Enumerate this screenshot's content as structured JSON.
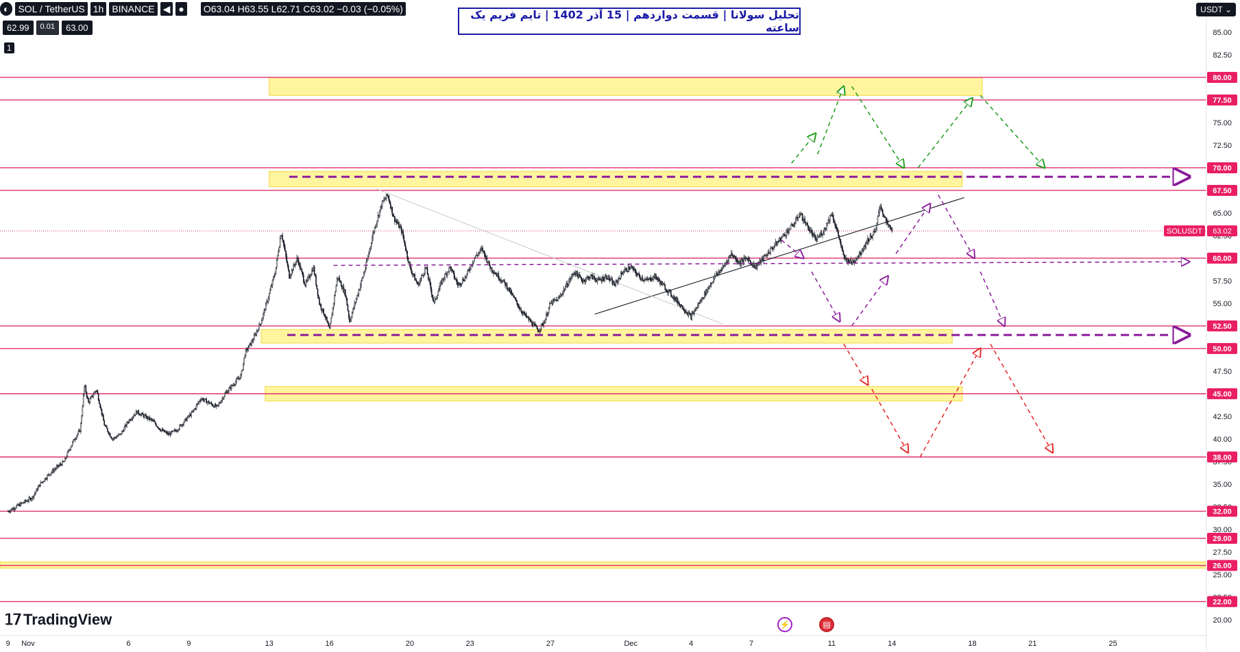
{
  "header": {
    "symbol": "SOL / TetherUS",
    "interval": "1h",
    "exchange": "BINANCE",
    "ohlc": "O63.04 H63.55 L62.71 C63.02 −0.03 (−0.05%)",
    "bid": "62.99",
    "spread": "0.01",
    "ask": "63.00",
    "collapse_label": "1"
  },
  "title": "تحلیل سولانا | قسمت دوازدهم | 15 آذر 1402 | تایم فریم یک ساعته",
  "currency_button": "USDT",
  "logo_text": "TradingView",
  "colors": {
    "candle": "#131722",
    "level_line": "#e0306a",
    "zone_fill": "#fff176",
    "price_label_bg": "#e91e63",
    "title_border": "#1a1aa8",
    "green_path": "#1a9a1a",
    "purple_path": "#8a1a9a",
    "red_path": "#e52222"
  },
  "chart_data": {
    "type": "candlestick",
    "symbol": "SOLUSDT",
    "last_price": 63.02,
    "last_price_label": "63.02",
    "ylim": [
      19,
      87.5
    ],
    "y_ticks": [
      "85.00",
      "82.50",
      "77.50",
      "75.00",
      "72.50",
      "67.50",
      "65.00",
      "62.50",
      "57.50",
      "55.00",
      "52.50",
      "47.50",
      "45.00",
      "42.50",
      "40.00",
      "37.50",
      "35.00",
      "32.50",
      "30.00",
      "27.50",
      "25.00",
      "22.50",
      "20.00"
    ],
    "x_ticks": [
      {
        "day": 0,
        "label": "9"
      },
      {
        "day": 1,
        "label": "Nov"
      },
      {
        "day": 6,
        "label": "6"
      },
      {
        "day": 9,
        "label": "9"
      },
      {
        "day": 13,
        "label": "13"
      },
      {
        "day": 16,
        "label": "16"
      },
      {
        "day": 20,
        "label": "20"
      },
      {
        "day": 23,
        "label": "23"
      },
      {
        "day": 27,
        "label": "27"
      },
      {
        "day": 31,
        "label": "Dec"
      },
      {
        "day": 34,
        "label": "4"
      },
      {
        "day": 37,
        "label": "7"
      },
      {
        "day": 41,
        "label": "11"
      },
      {
        "day": 44,
        "label": "14"
      },
      {
        "day": 48,
        "label": "18"
      },
      {
        "day": 51,
        "label": "21"
      },
      {
        "day": 55,
        "label": "25"
      }
    ],
    "levels": [
      {
        "price": 80.0,
        "label": "80.00"
      },
      {
        "price": 77.5,
        "label": "77.50"
      },
      {
        "price": 70.0,
        "label": "70.00"
      },
      {
        "price": 67.5,
        "label": "67.50"
      },
      {
        "price": 60.0,
        "label": "60.00"
      },
      {
        "price": 52.5,
        "label": "52.50"
      },
      {
        "price": 50.0,
        "label": "50.00"
      },
      {
        "price": 45.0,
        "label": "45.00"
      },
      {
        "price": 38.0,
        "label": "38.00"
      },
      {
        "price": 32.0,
        "label": "32.00"
      },
      {
        "price": 29.0,
        "label": "29.00"
      },
      {
        "price": 26.0,
        "label": "26.00"
      },
      {
        "price": 22.0,
        "label": "22.00"
      }
    ],
    "zones": [
      {
        "from_day": 13.0,
        "to_day": 48.5,
        "low": 78.0,
        "high": 80.0
      },
      {
        "from_day": 13.0,
        "to_day": 47.5,
        "low": 67.9,
        "high": 69.6
      },
      {
        "from_day": 12.6,
        "to_day": 47.0,
        "low": 50.6,
        "high": 52.1
      },
      {
        "from_day": 12.8,
        "to_day": 47.5,
        "low": 44.2,
        "high": 45.8
      },
      {
        "from_day": -0.5,
        "to_day": 60.0,
        "low": 25.7,
        "high": 26.4
      }
    ],
    "price_path": [
      [
        0.0,
        32.0
      ],
      [
        0.4,
        32.5
      ],
      [
        0.8,
        33.0
      ],
      [
        1.2,
        33.5
      ],
      [
        1.6,
        35.0
      ],
      [
        2.0,
        36.0
      ],
      [
        2.4,
        36.8
      ],
      [
        2.8,
        37.5
      ],
      [
        3.0,
        38.6
      ],
      [
        3.3,
        40.0
      ],
      [
        3.6,
        41.0
      ],
      [
        3.8,
        46.0
      ],
      [
        4.0,
        44.0
      ],
      [
        4.4,
        45.5
      ],
      [
        4.8,
        41.5
      ],
      [
        5.2,
        40.0
      ],
      [
        5.6,
        40.5
      ],
      [
        6.0,
        42.0
      ],
      [
        6.4,
        43.0
      ],
      [
        6.8,
        42.5
      ],
      [
        7.2,
        42.0
      ],
      [
        7.6,
        41.0
      ],
      [
        8.0,
        40.5
      ],
      [
        8.4,
        41.0
      ],
      [
        8.8,
        42.0
      ],
      [
        9.2,
        43.0
      ],
      [
        9.6,
        44.5
      ],
      [
        10.0,
        44.0
      ],
      [
        10.4,
        43.5
      ],
      [
        10.8,
        45.0
      ],
      [
        11.2,
        46.0
      ],
      [
        11.6,
        47.0
      ],
      [
        11.8,
        49.5
      ],
      [
        12.2,
        51.0
      ],
      [
        12.6,
        53.0
      ],
      [
        13.0,
        56.0
      ],
      [
        13.3,
        58.5
      ],
      [
        13.6,
        63.0
      ],
      [
        14.0,
        58.0
      ],
      [
        14.4,
        60.0
      ],
      [
        14.8,
        57.0
      ],
      [
        15.2,
        59.0
      ],
      [
        15.5,
        55.0
      ],
      [
        15.8,
        53.5
      ],
      [
        16.0,
        52.0
      ],
      [
        16.4,
        58.0
      ],
      [
        16.8,
        56.0
      ],
      [
        17.0,
        53.0
      ],
      [
        17.4,
        56.0
      ],
      [
        17.8,
        59.0
      ],
      [
        18.2,
        63.0
      ],
      [
        18.6,
        66.0
      ],
      [
        18.9,
        67.0
      ],
      [
        19.2,
        64.5
      ],
      [
        19.6,
        63.0
      ],
      [
        20.0,
        59.0
      ],
      [
        20.4,
        57.0
      ],
      [
        20.8,
        59.0
      ],
      [
        21.2,
        55.0
      ],
      [
        21.6,
        57.5
      ],
      [
        22.0,
        59.0
      ],
      [
        22.4,
        57.0
      ],
      [
        22.8,
        58.0
      ],
      [
        23.2,
        60.0
      ],
      [
        23.6,
        61.0
      ],
      [
        24.0,
        59.0
      ],
      [
        24.4,
        58.0
      ],
      [
        24.8,
        57.0
      ],
      [
        25.2,
        55.5
      ],
      [
        25.6,
        54.0
      ],
      [
        26.0,
        53.0
      ],
      [
        26.4,
        52.0
      ],
      [
        26.7,
        53.0
      ],
      [
        27.0,
        55.0
      ],
      [
        27.4,
        55.5
      ],
      [
        27.8,
        57.0
      ],
      [
        28.2,
        58.5
      ],
      [
        28.6,
        57.5
      ],
      [
        29.0,
        58.0
      ],
      [
        29.4,
        57.5
      ],
      [
        29.8,
        58.0
      ],
      [
        30.2,
        57.0
      ],
      [
        30.6,
        58.5
      ],
      [
        31.0,
        59.0
      ],
      [
        31.4,
        58.0
      ],
      [
        31.8,
        57.5
      ],
      [
        32.2,
        58.0
      ],
      [
        32.6,
        57.0
      ],
      [
        33.0,
        56.0
      ],
      [
        33.4,
        55.0
      ],
      [
        33.8,
        54.0
      ],
      [
        34.0,
        53.5
      ],
      [
        34.4,
        55.0
      ],
      [
        34.8,
        56.5
      ],
      [
        35.2,
        58.0
      ],
      [
        35.6,
        59.0
      ],
      [
        36.0,
        60.5
      ],
      [
        36.4,
        59.5
      ],
      [
        36.8,
        60.0
      ],
      [
        37.2,
        59.0
      ],
      [
        37.6,
        60.0
      ],
      [
        38.0,
        61.0
      ],
      [
        38.4,
        62.0
      ],
      [
        38.8,
        63.0
      ],
      [
        39.2,
        64.0
      ],
      [
        39.4,
        65.0
      ],
      [
        39.8,
        63.5
      ],
      [
        40.2,
        62.0
      ],
      [
        40.6,
        63.0
      ],
      [
        41.0,
        65.0
      ],
      [
        41.4,
        62.0
      ],
      [
        41.6,
        60.0
      ],
      [
        42.0,
        59.5
      ],
      [
        42.4,
        60.5
      ],
      [
        42.8,
        62.0
      ],
      [
        43.2,
        63.0
      ],
      [
        43.4,
        66.0
      ],
      [
        43.7,
        64.0
      ],
      [
        44.0,
        63.0
      ]
    ],
    "trendlines": [
      {
        "from": [
          29.2,
          53.8
        ],
        "to": [
          47.6,
          66.7
        ],
        "color": "#131722",
        "width": 1.1
      },
      {
        "from": [
          18.3,
          67.7
        ],
        "to": [
          35.6,
          52.7
        ],
        "color": "#c8c8c8",
        "width": 1.0
      }
    ],
    "dashed_arrows": [
      {
        "color": "#8a1a9a",
        "width": 3,
        "points": [
          [
            14.0,
            69.0
          ],
          [
            47.5,
            69.0
          ],
          [
            58.8,
            69.0
          ]
        ]
      },
      {
        "color": "#8a1a9a",
        "width": 3,
        "points": [
          [
            13.9,
            51.5
          ],
          [
            47.0,
            51.5
          ],
          [
            58.8,
            51.5
          ]
        ]
      },
      {
        "color": "#8a1a9a",
        "width": 1.5,
        "points": [
          [
            16.2,
            59.2
          ],
          [
            58.8,
            59.6
          ]
        ]
      },
      {
        "color": "#1a9a1a",
        "width": 1.5,
        "points": [
          [
            39.0,
            70.5
          ],
          [
            40.2,
            73.8
          ]
        ]
      },
      {
        "color": "#1a9a1a",
        "width": 1.5,
        "points": [
          [
            40.3,
            71.5
          ],
          [
            41.6,
            79.0
          ]
        ]
      },
      {
        "color": "#1a9a1a",
        "width": 1.5,
        "points": [
          [
            42.0,
            79.0
          ],
          [
            44.6,
            70.0
          ]
        ]
      },
      {
        "color": "#1a9a1a",
        "width": 1.5,
        "points": [
          [
            45.3,
            70.0
          ],
          [
            48.0,
            77.7
          ]
        ]
      },
      {
        "color": "#1a9a1a",
        "width": 1.5,
        "points": [
          [
            48.4,
            78.0
          ],
          [
            51.6,
            70.0
          ]
        ]
      },
      {
        "color": "#8a1a9a",
        "width": 1.5,
        "points": [
          [
            38.5,
            62.0
          ],
          [
            39.6,
            60.0
          ]
        ]
      },
      {
        "color": "#8a1a9a",
        "width": 1.5,
        "points": [
          [
            40.0,
            58.5
          ],
          [
            41.4,
            53.0
          ]
        ]
      },
      {
        "color": "#8a1a9a",
        "width": 1.5,
        "points": [
          [
            42.0,
            52.5
          ],
          [
            43.8,
            58.0
          ]
        ]
      },
      {
        "color": "#8a1a9a",
        "width": 1.5,
        "points": [
          [
            44.2,
            60.5
          ],
          [
            45.9,
            66.0
          ]
        ]
      },
      {
        "color": "#8a1a9a",
        "width": 1.5,
        "points": [
          [
            46.3,
            67.0
          ],
          [
            48.1,
            60.0
          ]
        ]
      },
      {
        "color": "#8a1a9a",
        "width": 1.5,
        "points": [
          [
            48.4,
            58.5
          ],
          [
            49.6,
            52.5
          ]
        ]
      },
      {
        "color": "#e52222",
        "width": 1.5,
        "points": [
          [
            41.6,
            50.5
          ],
          [
            42.8,
            46.0
          ]
        ]
      },
      {
        "color": "#e52222",
        "width": 1.5,
        "points": [
          [
            43.0,
            45.5
          ],
          [
            44.8,
            38.5
          ]
        ]
      },
      {
        "color": "#e52222",
        "width": 1.5,
        "points": [
          [
            45.4,
            38.0
          ],
          [
            48.4,
            50.0
          ]
        ]
      },
      {
        "color": "#e52222",
        "width": 1.5,
        "points": [
          [
            48.9,
            50.5
          ],
          [
            52.0,
            38.5
          ]
        ]
      }
    ]
  }
}
